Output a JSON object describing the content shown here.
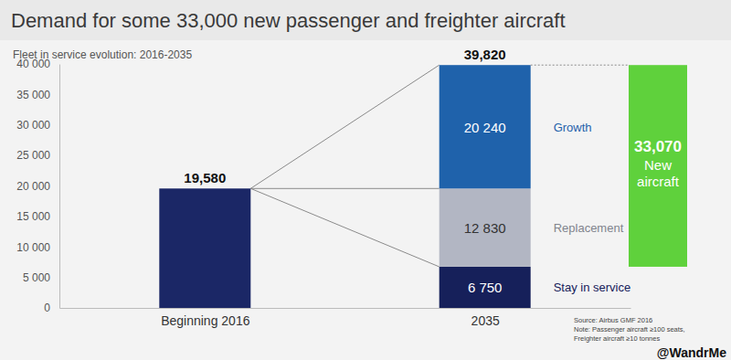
{
  "chart_data": {
    "type": "bar",
    "stacked": true,
    "data_labels": true,
    "title": "Demand for some 33,000 new passenger and freighter aircraft",
    "subtitle": "Fleet in service evolution: 2016-2035",
    "categories": [
      "Beginning 2016",
      "2035"
    ],
    "series": [
      {
        "color": "#1b2766",
        "values": [
          19580,
          null
        ],
        "value_labels": [
          "19,580",
          null
        ]
      },
      {
        "name": "Stay in service",
        "color": "#16205a",
        "values": [
          null,
          6750
        ],
        "value_labels": [
          null,
          "6 750"
        ]
      },
      {
        "name": "Replacement",
        "color": "#b2b6c3",
        "values": [
          null,
          12830
        ],
        "value_labels": [
          null,
          "12 830"
        ]
      },
      {
        "name": "Growth",
        "color": "#1f62ab",
        "values": [
          null,
          20240
        ],
        "value_labels": [
          null,
          "20 240"
        ]
      }
    ],
    "totals": [
      null,
      39820
    ],
    "total_labels": [
      null,
      "39,820"
    ],
    "new_aircraft": {
      "value": 33070,
      "label": "33,070",
      "text": "New aircraft",
      "color": "#5fd13c"
    },
    "ylim": [
      0,
      40000
    ],
    "yticks": [
      0,
      {
        "value": 5000,
        "label": "5 000"
      },
      {
        "value": 10000,
        "label": "10 000"
      },
      {
        "value": 15000,
        "label": "15 000"
      },
      {
        "value": 20000,
        "label": "20 000"
      },
      {
        "value": 25000,
        "label": "25 000"
      },
      {
        "value": 30000,
        "label": "30 000"
      },
      {
        "value": 35000,
        "label": "35 000"
      },
      {
        "value": 40000,
        "label": "40 000"
      }
    ],
    "annotations": [
      "Source: Airbus GMF 2016",
      "Note: Passenger aircraft ≥100 seats,",
      "Freighter aircraft ≥10 tonnes",
      "@WandrMe"
    ]
  }
}
